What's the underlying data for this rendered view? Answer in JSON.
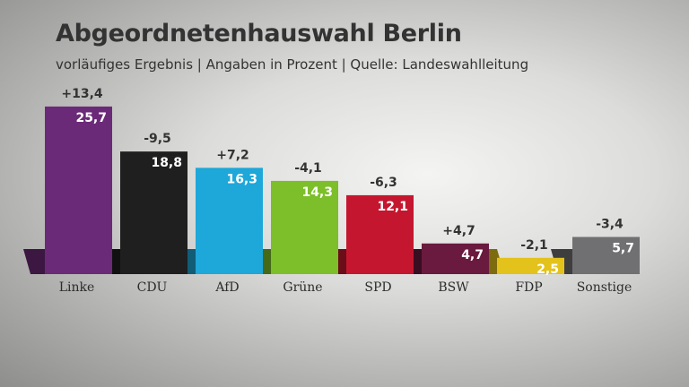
{
  "title": "Abgeordnetenhauswahl Berlin",
  "subtitle": "vorläufiges Ergebnis | Angaben in Prozent | Quelle: Landeswahlleitung",
  "chart_data": {
    "type": "bar",
    "title": "Abgeordnetenhauswahl Berlin",
    "subtitle": "vorläufiges Ergebnis | Angaben in Prozent | Quelle: Landeswahlleitung",
    "categories": [
      "Linke",
      "CDU",
      "AfD",
      "Grüne",
      "SPD",
      "BSW",
      "FDP",
      "Sonstige"
    ],
    "values": [
      25.7,
      18.8,
      16.3,
      14.3,
      12.1,
      4.7,
      2.5,
      5.7
    ],
    "value_labels": [
      "25,7",
      "18,8",
      "16,3",
      "14,3",
      "12,1",
      "4,7",
      "2,5",
      "5,7"
    ],
    "changes": [
      13.4,
      -9.5,
      7.2,
      -4.1,
      -6.3,
      4.7,
      -2.1,
      -3.4
    ],
    "change_labels": [
      "+13,4",
      "-9,5",
      "+7,2",
      "-4,1",
      "-6,3",
      "+4,7",
      "-2,1",
      "-3,4"
    ],
    "colors": [
      "#6b2a78",
      "#1f1f1f",
      "#1ea7d9",
      "#7cbf2a",
      "#c4172f",
      "#6a1a3e",
      "#e3c21b",
      "#707073"
    ],
    "grid": false,
    "legend": "none"
  }
}
